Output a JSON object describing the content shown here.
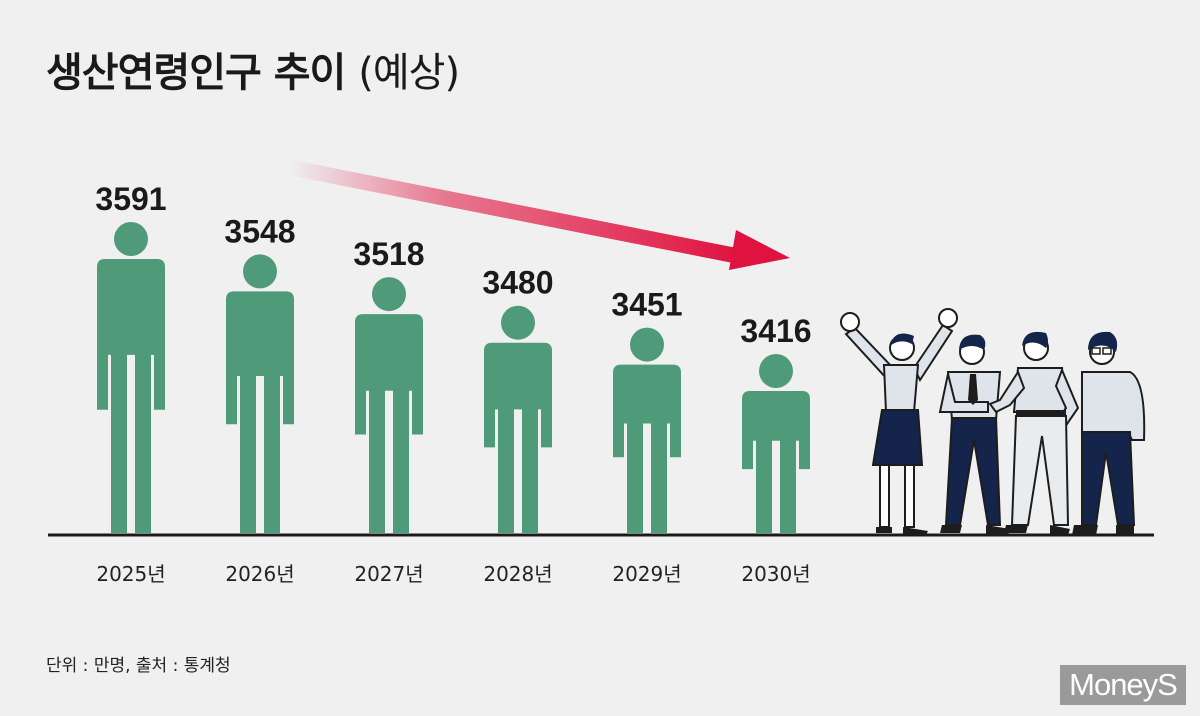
{
  "title": {
    "main": "생산연령인구 추이",
    "sub": "(예상)"
  },
  "source": "단위 : 만명, 출처 : 통계청",
  "logo": "MoneyS",
  "colors": {
    "figure": "#4f9a79",
    "arrow": "#e0123f",
    "baseline": "#1a1a1a",
    "background": "#f0f0f0"
  },
  "chart_data": {
    "type": "bar",
    "categories": [
      "2025년",
      "2026년",
      "2027년",
      "2028년",
      "2029년",
      "2030년"
    ],
    "values": [
      3591,
      3548,
      3518,
      3480,
      3451,
      3416
    ],
    "value_labels": [
      "3591",
      "3548",
      "3518",
      "3480",
      "3451",
      "3416"
    ],
    "unit": "만명",
    "trend": "decreasing",
    "grid": false,
    "legend": "none"
  }
}
